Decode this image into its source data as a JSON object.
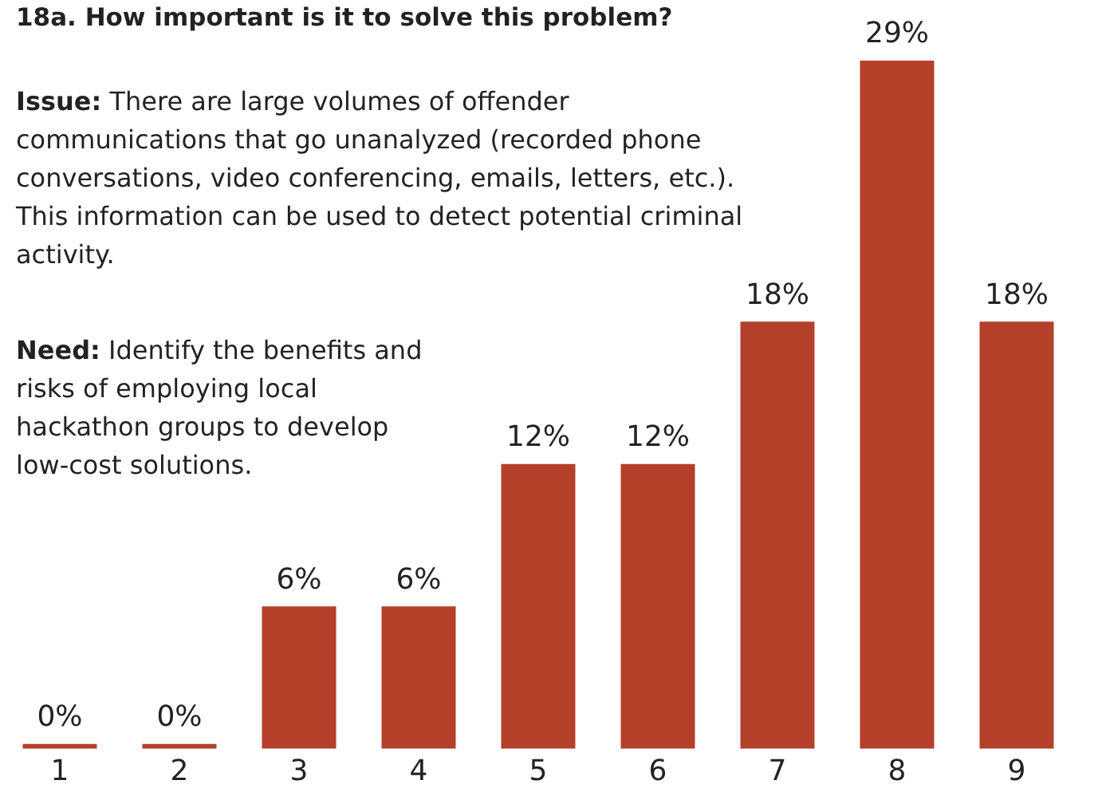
{
  "chart_data": {
    "type": "bar",
    "title": "18a. How important is it to solve this problem?",
    "annotations": [
      "Issue: There are large volumes of offender communications that go unanalyzed (recorded phone conversations, video conferencing, emails, letters, etc.). This information can be used to detect potential criminal activity.",
      "Need: Identify the benefits and risks of employing local hackathon groups to develop low-cost solutions."
    ],
    "categories": [
      "1",
      "2",
      "3",
      "4",
      "5",
      "6",
      "7",
      "8",
      "9"
    ],
    "values": [
      0,
      0,
      6,
      6,
      12,
      12,
      18,
      29,
      18
    ],
    "value_labels": [
      "0%",
      "0%",
      "6%",
      "6%",
      "12%",
      "12%",
      "18%",
      "29%",
      "18%"
    ],
    "color": "#b5402a",
    "grid": false,
    "legend": false
  }
}
